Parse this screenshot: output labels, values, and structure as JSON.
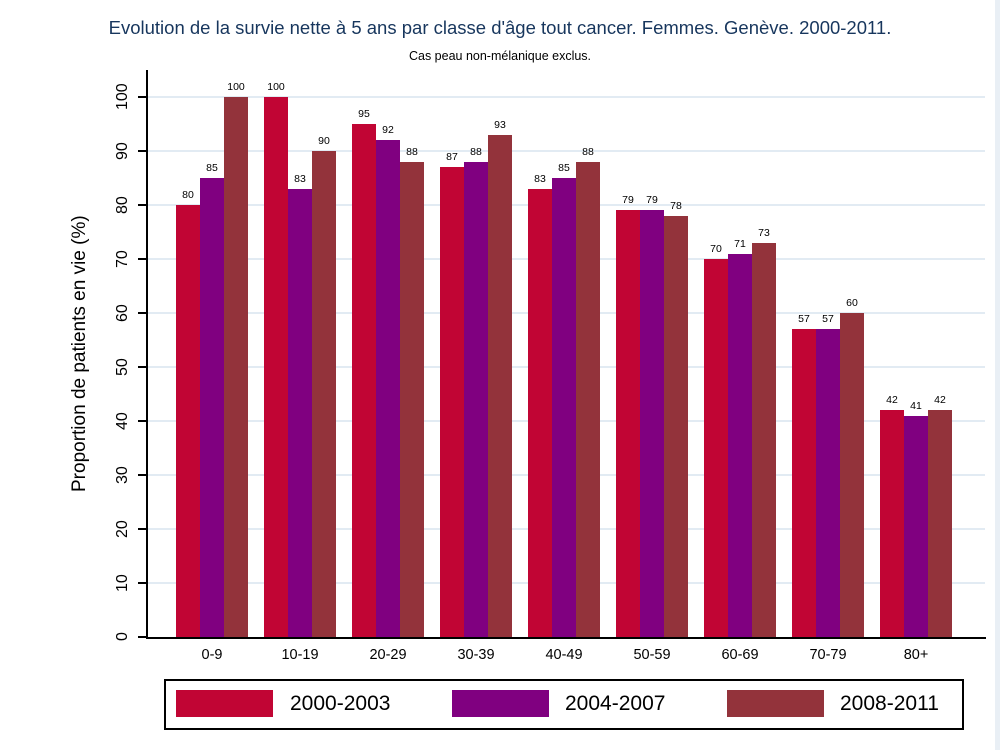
{
  "title": "Evolution de la survie nette à 5 ans par classe d'âge tout cancer. Femmes. Genève. 2000-2011.",
  "subtitle": "Cas peau non-mélanique exclus.",
  "colors": {
    "title_text": "#17365D",
    "gridline": "#E2EBF3",
    "axis": "#000000",
    "background": "#FFFFFF",
    "right_edge_strip": "#E9EFF5",
    "series_2000_2003": "#C10534",
    "series_2004_2007": "#800080",
    "series_2008_2011": "#93333B"
  },
  "chart_data": {
    "type": "bar",
    "title": "Evolution de la survie nette à 5 ans par classe d'âge tout cancer. Femmes. Genève. 2000-2011.",
    "subtitle": "Cas peau non-mélanique exclus.",
    "xlabel": "",
    "ylabel": "Proportion de patients en vie (%)",
    "ylim": [
      0,
      100
    ],
    "yticks": [
      0,
      10,
      20,
      30,
      40,
      50,
      60,
      70,
      80,
      90,
      100
    ],
    "grid": true,
    "bar_value_labels": true,
    "legend_position": "bottom",
    "categories": [
      "0-9",
      "10-19",
      "20-29",
      "30-39",
      "40-49",
      "50-59",
      "60-69",
      "70-79",
      "80+"
    ],
    "series": [
      {
        "name": "2000-2003",
        "color": "#C10534",
        "values": [
          80,
          100,
          95,
          87,
          83,
          79,
          70,
          57,
          42
        ]
      },
      {
        "name": "2004-2007",
        "color": "#800080",
        "values": [
          85,
          83,
          92,
          88,
          85,
          79,
          71,
          57,
          41
        ]
      },
      {
        "name": "2008-2011",
        "color": "#93333B",
        "values": [
          100,
          90,
          88,
          93,
          88,
          78,
          73,
          60,
          42
        ]
      }
    ]
  }
}
